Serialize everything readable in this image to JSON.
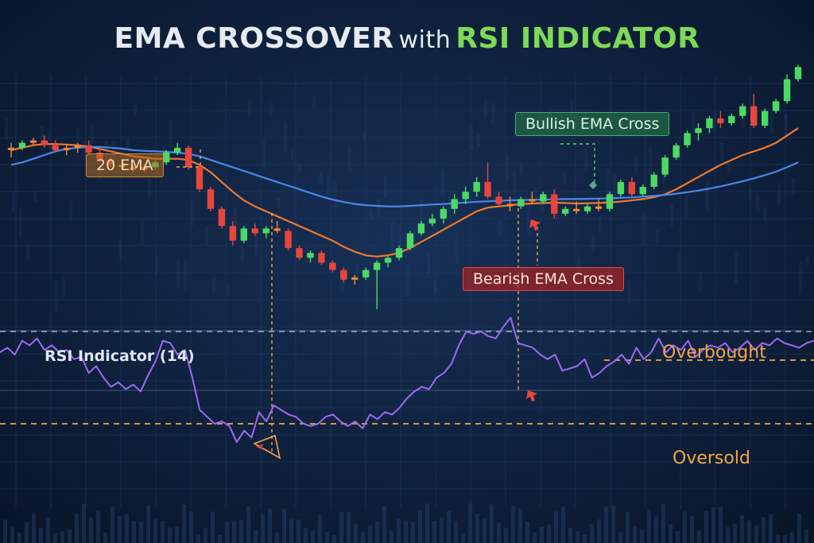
{
  "title": {
    "main": "EMA CROSSOVER",
    "connector": "with",
    "accent": "RSI INDICATOR"
  },
  "callouts": {
    "ema20": "20 EMA",
    "bullish": "Bullish EMA Cross",
    "bearish": "Bearish EMA Cross"
  },
  "rsi_panel": {
    "label": "RSI Indicator (14)",
    "overbought": "Overbought",
    "oversold": "Oversold"
  },
  "colors": {
    "background": "#0b1a33",
    "up_candle": "#4cd964",
    "down_candle": "#e8463c",
    "neutral_candle": "#f08a2e",
    "ema20": "#f0782e",
    "ema_slow": "#4a86e8",
    "rsi_line": "#9b6bf2",
    "level_line": "#f3a640",
    "arrow": "#e8463c",
    "marker": "#5fa88a"
  },
  "chart_data": [
    {
      "type": "candlestick",
      "title": "EMA CROSSOVER with RSI INDICATOR",
      "candles": [
        {
          "o": 57,
          "h": 60,
          "l": 54,
          "c": 58
        },
        {
          "o": 58,
          "h": 61,
          "l": 57,
          "c": 60
        },
        {
          "o": 60,
          "h": 62,
          "l": 59,
          "c": 61
        },
        {
          "o": 61,
          "h": 63,
          "l": 58,
          "c": 59
        },
        {
          "o": 59,
          "h": 61,
          "l": 56,
          "c": 57
        },
        {
          "o": 57,
          "h": 59,
          "l": 55,
          "c": 58
        },
        {
          "o": 58,
          "h": 60,
          "l": 56,
          "c": 59
        },
        {
          "o": 59,
          "h": 61,
          "l": 55,
          "c": 56
        },
        {
          "o": 56,
          "h": 57,
          "l": 52,
          "c": 53
        },
        {
          "o": 53,
          "h": 54,
          "l": 50,
          "c": 51
        },
        {
          "o": 51,
          "h": 52,
          "l": 49,
          "c": 50
        },
        {
          "o": 50,
          "h": 51,
          "l": 48,
          "c": 49
        },
        {
          "o": 49,
          "h": 51,
          "l": 48,
          "c": 50
        },
        {
          "o": 50,
          "h": 53,
          "l": 49,
          "c": 52
        },
        {
          "o": 52,
          "h": 57,
          "l": 51,
          "c": 56
        },
        {
          "o": 56,
          "h": 60,
          "l": 55,
          "c": 58
        },
        {
          "o": 58,
          "h": 59,
          "l": 49,
          "c": 50
        },
        {
          "o": 50,
          "h": 51,
          "l": 40,
          "c": 41
        },
        {
          "o": 41,
          "h": 42,
          "l": 32,
          "c": 33
        },
        {
          "o": 33,
          "h": 34,
          "l": 25,
          "c": 26
        },
        {
          "o": 26,
          "h": 28,
          "l": 18,
          "c": 20
        },
        {
          "o": 20,
          "h": 26,
          "l": 19,
          "c": 25
        },
        {
          "o": 25,
          "h": 27,
          "l": 22,
          "c": 23
        },
        {
          "o": 23,
          "h": 26,
          "l": 21,
          "c": 25
        },
        {
          "o": 25,
          "h": 28,
          "l": 23,
          "c": 24
        },
        {
          "o": 24,
          "h": 25,
          "l": 16,
          "c": 17
        },
        {
          "o": 17,
          "h": 18,
          "l": 12,
          "c": 13
        },
        {
          "o": 13,
          "h": 16,
          "l": 11,
          "c": 15
        },
        {
          "o": 15,
          "h": 16,
          "l": 10,
          "c": 11
        },
        {
          "o": 11,
          "h": 12,
          "l": 7,
          "c": 8
        },
        {
          "o": 8,
          "h": 9,
          "l": 3,
          "c": 4
        },
        {
          "o": 4,
          "h": 6,
          "l": 2,
          "c": 5
        },
        {
          "o": 5,
          "h": 9,
          "l": 4,
          "c": 8
        },
        {
          "o": 8,
          "h": 12,
          "l": -8,
          "c": 11
        },
        {
          "o": 11,
          "h": 14,
          "l": 9,
          "c": 13
        },
        {
          "o": 13,
          "h": 18,
          "l": 12,
          "c": 17
        },
        {
          "o": 17,
          "h": 24,
          "l": 16,
          "c": 23
        },
        {
          "o": 23,
          "h": 28,
          "l": 22,
          "c": 27
        },
        {
          "o": 27,
          "h": 31,
          "l": 26,
          "c": 29
        },
        {
          "o": 29,
          "h": 34,
          "l": 27,
          "c": 33
        },
        {
          "o": 33,
          "h": 39,
          "l": 31,
          "c": 37
        },
        {
          "o": 37,
          "h": 42,
          "l": 35,
          "c": 40
        },
        {
          "o": 40,
          "h": 46,
          "l": 38,
          "c": 44
        },
        {
          "o": 44,
          "h": 52,
          "l": 37,
          "c": 38
        },
        {
          "o": 38,
          "h": 40,
          "l": 34,
          "c": 35
        },
        {
          "o": 35,
          "h": 38,
          "l": 32,
          "c": 34
        },
        {
          "o": 34,
          "h": 38,
          "l": 33,
          "c": 37
        },
        {
          "o": 37,
          "h": 40,
          "l": 35,
          "c": 36
        },
        {
          "o": 36,
          "h": 40,
          "l": 35,
          "c": 39
        },
        {
          "o": 39,
          "h": 41,
          "l": 29,
          "c": 31
        },
        {
          "o": 31,
          "h": 34,
          "l": 30,
          "c": 33
        },
        {
          "o": 33,
          "h": 36,
          "l": 31,
          "c": 32
        },
        {
          "o": 32,
          "h": 35,
          "l": 31,
          "c": 34
        },
        {
          "o": 34,
          "h": 37,
          "l": 32,
          "c": 33
        },
        {
          "o": 33,
          "h": 40,
          "l": 32,
          "c": 39
        },
        {
          "o": 39,
          "h": 45,
          "l": 38,
          "c": 44
        },
        {
          "o": 44,
          "h": 46,
          "l": 38,
          "c": 39
        },
        {
          "o": 39,
          "h": 43,
          "l": 38,
          "c": 42
        },
        {
          "o": 42,
          "h": 48,
          "l": 41,
          "c": 47
        },
        {
          "o": 47,
          "h": 55,
          "l": 46,
          "c": 54
        },
        {
          "o": 54,
          "h": 60,
          "l": 53,
          "c": 59
        },
        {
          "o": 59,
          "h": 65,
          "l": 58,
          "c": 64
        },
        {
          "o": 64,
          "h": 68,
          "l": 61,
          "c": 66
        },
        {
          "o": 66,
          "h": 71,
          "l": 64,
          "c": 70
        },
        {
          "o": 70,
          "h": 73,
          "l": 66,
          "c": 68
        },
        {
          "o": 68,
          "h": 72,
          "l": 67,
          "c": 71
        },
        {
          "o": 71,
          "h": 76,
          "l": 70,
          "c": 75
        },
        {
          "o": 75,
          "h": 80,
          "l": 66,
          "c": 67
        },
        {
          "o": 67,
          "h": 74,
          "l": 66,
          "c": 73
        },
        {
          "o": 73,
          "h": 78,
          "l": 72,
          "c": 77
        },
        {
          "o": 77,
          "h": 88,
          "l": 76,
          "c": 86
        },
        {
          "o": 86,
          "h": 92,
          "l": 85,
          "c": 91
        }
      ],
      "series": [
        {
          "name": "20 EMA",
          "values": [
            57,
            58,
            59,
            59.5,
            59.5,
            59.3,
            59,
            58.5,
            57.5,
            56.5,
            55.5,
            54.5,
            54,
            53.5,
            53.5,
            53.5,
            53,
            51,
            48,
            44,
            40,
            36.5,
            34,
            32,
            30,
            28,
            26,
            24,
            22,
            20,
            17.5,
            15.5,
            14,
            13.5,
            14,
            15,
            17,
            19.5,
            22,
            24.5,
            27,
            29.5,
            32,
            33.5,
            34,
            34.5,
            35,
            35.2,
            35.4,
            35.5,
            35.4,
            35.2,
            35.3,
            35.4,
            35.6,
            36,
            36.5,
            37,
            37.8,
            39,
            41,
            43.5,
            46,
            48.5,
            51,
            53,
            55,
            56.5,
            58,
            60,
            63,
            66
          ]
        },
        {
          "name": "",
          "values": [
            51,
            52,
            53.5,
            55,
            56.5,
            57.5,
            58,
            58.3,
            58.3,
            58,
            57.6,
            57,
            56.7,
            56.5,
            56.3,
            56,
            55.5,
            54.5,
            53,
            51.5,
            50,
            48.5,
            47,
            45.5,
            44,
            42.5,
            41,
            39.5,
            38,
            36.8,
            35.8,
            35,
            34.5,
            34.2,
            34,
            34,
            34.2,
            34.5,
            34.8,
            35,
            35.3,
            35.6,
            35.9,
            36.1,
            36.3,
            36.5,
            36.6,
            36.7,
            36.8,
            36.9,
            37,
            37,
            37.1,
            37.2,
            37.3,
            37.5,
            37.7,
            38,
            38.3,
            38.7,
            39.2,
            39.8,
            40.5,
            41.3,
            42.2,
            43.2,
            44.3,
            45.5,
            46.8,
            48.2,
            50,
            52
          ]
        }
      ],
      "annotations": [
        {
          "text": "20 EMA"
        },
        {
          "text": "Bullish EMA Cross"
        },
        {
          "text": "Bearish EMA Cross"
        }
      ]
    },
    {
      "type": "line",
      "title": "RSI Indicator (14)",
      "ylim": [
        0,
        100
      ],
      "reference_lines": [
        {
          "name": "Overbought",
          "value": 70
        },
        {
          "name": "Oversold",
          "value": 30
        }
      ],
      "series": [
        {
          "name": "RSI Indicator (14)",
          "values": [
            61,
            63,
            60,
            66,
            64,
            67,
            62,
            64,
            61,
            62,
            58,
            59,
            52,
            55,
            50,
            46,
            48,
            45,
            47,
            44,
            51,
            57,
            66,
            65,
            60,
            62,
            50,
            36,
            33,
            30,
            31,
            29,
            22,
            27,
            24,
            35,
            31,
            38,
            36,
            34,
            33,
            30,
            29,
            30,
            33,
            34,
            31,
            29,
            31,
            28,
            34,
            32,
            35,
            34,
            37,
            41,
            44,
            46,
            45,
            50,
            52,
            56,
            64,
            70,
            69,
            70,
            68,
            67,
            72,
            76,
            65,
            64,
            63,
            60,
            58,
            60,
            53,
            54,
            55,
            58,
            50,
            52,
            55,
            57,
            60,
            56,
            63,
            58,
            61,
            67,
            61,
            64,
            62,
            66,
            59,
            62,
            64,
            63,
            65,
            61,
            63,
            66,
            62,
            65,
            64,
            67,
            65,
            64,
            63,
            65,
            66
          ]
        }
      ]
    }
  ]
}
